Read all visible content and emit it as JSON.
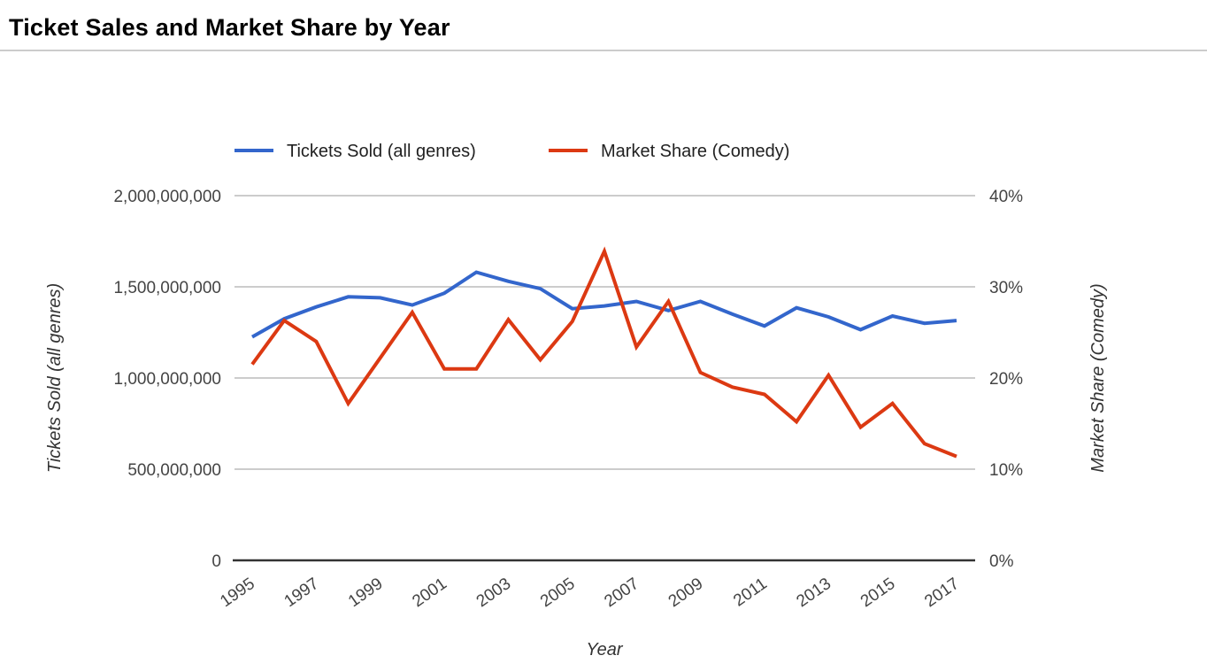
{
  "page": {
    "title": "Ticket Sales and Market Share by Year"
  },
  "colors": {
    "tickets_line": "#3366CC",
    "market_share_line": "#DC3912",
    "grid": "#CCCCCC",
    "axis_line": "#333333",
    "tick_text": "#444444",
    "axis_title_text": "#333333",
    "legend_text": "#212121",
    "title_text": "#000000",
    "title_rule": "#CCCCCC"
  },
  "chart_data": {
    "type": "line",
    "title": "Ticket Sales and Market Share by Year",
    "xlabel": "Year",
    "grid": true,
    "legend_position": "top",
    "x": [
      1995,
      1996,
      1997,
      1998,
      1999,
      2000,
      2001,
      2002,
      2003,
      2004,
      2005,
      2006,
      2007,
      2008,
      2009,
      2010,
      2011,
      2012,
      2013,
      2014,
      2015,
      2016,
      2017
    ],
    "x_tick_labels": [
      "1995",
      "1997",
      "1999",
      "2001",
      "2003",
      "2005",
      "2007",
      "2009",
      "2011",
      "2013",
      "2015",
      "2017"
    ],
    "series": [
      {
        "name": "Tickets Sold (all genres)",
        "axis": "left",
        "color": "#3366CC",
        "values": [
          1225000000,
          1325000000,
          1390000000,
          1445000000,
          1440000000,
          1400000000,
          1465000000,
          1580000000,
          1530000000,
          1490000000,
          1380000000,
          1395000000,
          1420000000,
          1370000000,
          1420000000,
          1350000000,
          1285000000,
          1385000000,
          1335000000,
          1265000000,
          1340000000,
          1300000000,
          1315000000
        ]
      },
      {
        "name": "Market Share (Comedy)",
        "axis": "right",
        "color": "#DC3912",
        "values": [
          21.5,
          26.3,
          24.0,
          17.2,
          22.2,
          27.2,
          21.0,
          21.0,
          26.4,
          22.0,
          26.2,
          33.9,
          23.4,
          28.4,
          20.6,
          19.0,
          18.2,
          15.2,
          20.3,
          14.6,
          17.2,
          12.8,
          11.4
        ]
      }
    ],
    "left_axis": {
      "label": "Tickets Sold (all genres)",
      "range": [
        0,
        2000000000
      ],
      "ticks": [
        0,
        500000000,
        1000000000,
        1500000000,
        2000000000
      ],
      "tick_labels": [
        "0",
        "500,000,000",
        "1,000,000,000",
        "1,500,000,000",
        "2,000,000,000"
      ]
    },
    "right_axis": {
      "label": "Market Share (Comedy)",
      "range": [
        0,
        40
      ],
      "ticks": [
        0,
        10,
        20,
        30,
        40
      ],
      "tick_labels": [
        "0%",
        "10%",
        "20%",
        "30%",
        "40%"
      ]
    }
  }
}
